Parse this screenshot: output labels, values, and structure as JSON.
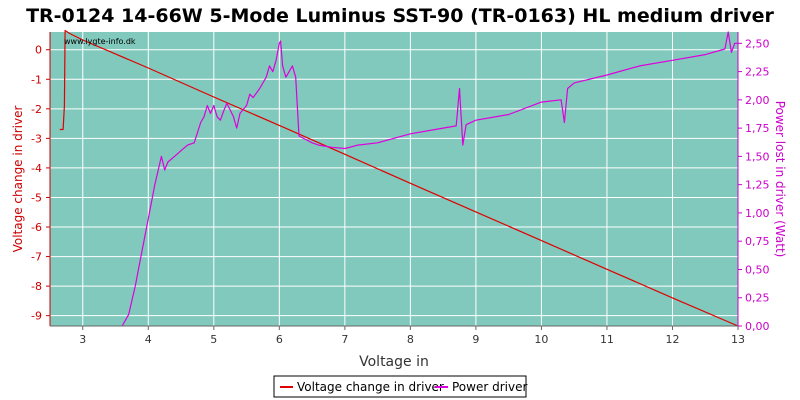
{
  "chart_data": {
    "type": "line",
    "title": "TR-0124 14-66W 5-Mode Luminus SST-90 (TR-0163) HL medium driver",
    "watermark": "www.lygte-info.dk",
    "xlabel": "Voltage in",
    "ylabel_left": "Voltage change in driver",
    "ylabel_right": "Power lost in driver (Watt)",
    "xlim": [
      2.5,
      13
    ],
    "ylim_left": [
      -9.35,
      0.6
    ],
    "ylim_right": [
      0,
      2.6
    ],
    "x_ticks": [
      "3",
      "4",
      "5",
      "6",
      "7",
      "8",
      "9",
      "10",
      "11",
      "12",
      "13"
    ],
    "y_left_ticks": [
      "0",
      "-1",
      "-2",
      "-3",
      "-4",
      "-5",
      "-6",
      "-7",
      "-8",
      "-9"
    ],
    "y_right_ticks": [
      "0,00",
      "0,25",
      "0,50",
      "0,75",
      "1,00",
      "1,25",
      "1,50",
      "1,75",
      "2,00",
      "2,25",
      "2,50"
    ],
    "grid": true,
    "legend_position": "bottom-center",
    "colors": {
      "plot_bg": "#80c9bc",
      "voltage": "#e00000",
      "power": "#dd00dd",
      "grid": "#ffffff",
      "left_axis": "#cc0000",
      "right_axis": "#cc00cc"
    },
    "series": [
      {
        "name": "Voltage change in driver",
        "axis": "left",
        "x": [
          2.65,
          2.7,
          2.72,
          2.73,
          2.8,
          3,
          4,
          5,
          6,
          7,
          8,
          9,
          10,
          11,
          12,
          13
        ],
        "y": [
          -2.7,
          -2.7,
          -1.9,
          0.65,
          0.55,
          0.33,
          -0.62,
          -1.6,
          -2.56,
          -3.54,
          -4.52,
          -5.49,
          -6.46,
          -7.43,
          -8.4,
          -9.35
        ]
      },
      {
        "name": "Power driver",
        "axis": "right",
        "x": [
          3.6,
          3.7,
          3.8,
          3.9,
          4.0,
          4.1,
          4.2,
          4.25,
          4.3,
          4.4,
          4.5,
          4.6,
          4.7,
          4.8,
          4.85,
          4.9,
          4.95,
          5.0,
          5.05,
          5.1,
          5.15,
          5.2,
          5.3,
          5.35,
          5.4,
          5.5,
          5.55,
          5.6,
          5.7,
          5.8,
          5.85,
          5.9,
          5.95,
          6.0,
          6.02,
          6.05,
          6.1,
          6.2,
          6.25,
          6.3,
          6.4,
          6.5,
          6.6,
          6.8,
          7.0,
          7.2,
          7.5,
          8.0,
          8.5,
          8.7,
          8.75,
          8.78,
          8.8,
          8.85,
          9.0,
          9.5,
          10.0,
          10.3,
          10.35,
          10.4,
          10.5,
          11.0,
          11.5,
          12.0,
          12.5,
          12.8,
          12.85,
          12.9,
          12.95,
          13.0
        ],
        "y": [
          0.0,
          0.1,
          0.35,
          0.65,
          0.95,
          1.25,
          1.5,
          1.38,
          1.45,
          1.5,
          1.55,
          1.6,
          1.62,
          1.8,
          1.85,
          1.95,
          1.88,
          1.95,
          1.85,
          1.82,
          1.9,
          1.97,
          1.85,
          1.75,
          1.88,
          1.95,
          2.05,
          2.02,
          2.1,
          2.2,
          2.3,
          2.25,
          2.35,
          2.5,
          2.52,
          2.3,
          2.2,
          2.3,
          2.2,
          1.68,
          1.65,
          1.62,
          1.6,
          1.58,
          1.57,
          1.6,
          1.62,
          1.7,
          1.75,
          1.77,
          2.1,
          1.8,
          1.6,
          1.78,
          1.82,
          1.87,
          1.98,
          2.0,
          1.8,
          2.1,
          2.15,
          2.22,
          2.3,
          2.35,
          2.4,
          2.45,
          2.6,
          2.42,
          2.5,
          2.5
        ]
      }
    ]
  }
}
